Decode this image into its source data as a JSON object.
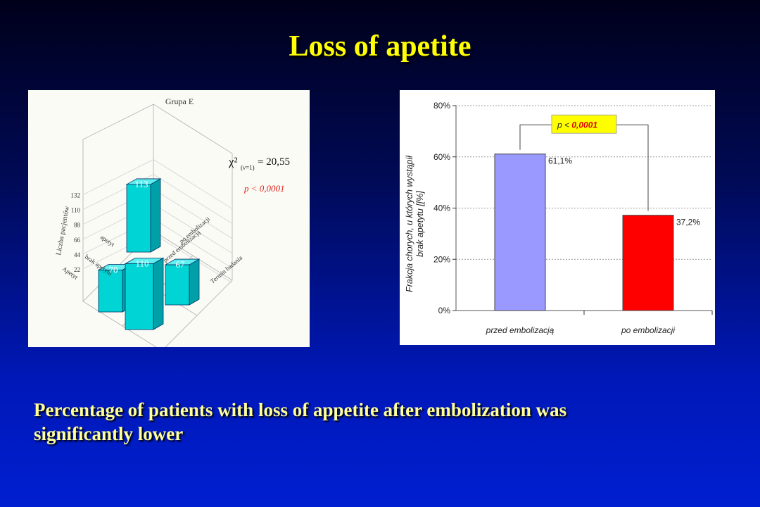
{
  "slide": {
    "title": "Loss of apetite",
    "caption_line1": "Percentage of patients with loss of appetite after embolization was",
    "caption_line2": "significantly lower"
  },
  "chart_data": [
    {
      "type": "bar",
      "variant": "3d",
      "title": "Grupa E",
      "ylabel": "Liczba pacjentów",
      "yticks": [
        "22",
        "44",
        "66",
        "88",
        "110",
        "132"
      ],
      "row_categories": [
        "brak apetytu",
        "Apetyt"
      ],
      "col_categories": [
        "po embolizacji",
        "przed embolizacją"
      ],
      "depth_axis_label": "Termin badania",
      "row_axis_label": "apetyt",
      "values": [
        {
          "value": 113,
          "label": "113"
        },
        {
          "value": 70,
          "label": "70"
        },
        {
          "value": 67,
          "label": "67"
        },
        {
          "value": 110,
          "label": "110"
        }
      ],
      "stat_label": "χ²",
      "stat_subscript": "(ν=1)",
      "stat_value": "= 20,55",
      "p_text": "p < 0,0001",
      "colors": {
        "bar_face": "#00d4d4",
        "bar_top": "#5fefef",
        "bar_side": "#00a0a8",
        "p_text": "#e0201a"
      }
    },
    {
      "type": "bar",
      "categories": [
        "przed embolizacją",
        "po embolizacji"
      ],
      "values": [
        61.1,
        37.2
      ],
      "value_labels": [
        "61,1%",
        "37,2%"
      ],
      "ylabel_line1": "Frakcja chorych, u których wystąpił",
      "ylabel_line2": "brak apetytu [[%]",
      "ylim": [
        0,
        80
      ],
      "yticks": [
        "0%",
        "20%",
        "40%",
        "60%",
        "80%"
      ],
      "grid": true,
      "colors": [
        "#9999ff",
        "#ff0000"
      ],
      "annotation": {
        "prefix": "p <",
        "value": "0,0001",
        "box_color": "#ffff00",
        "value_color": "#e00000"
      }
    }
  ]
}
